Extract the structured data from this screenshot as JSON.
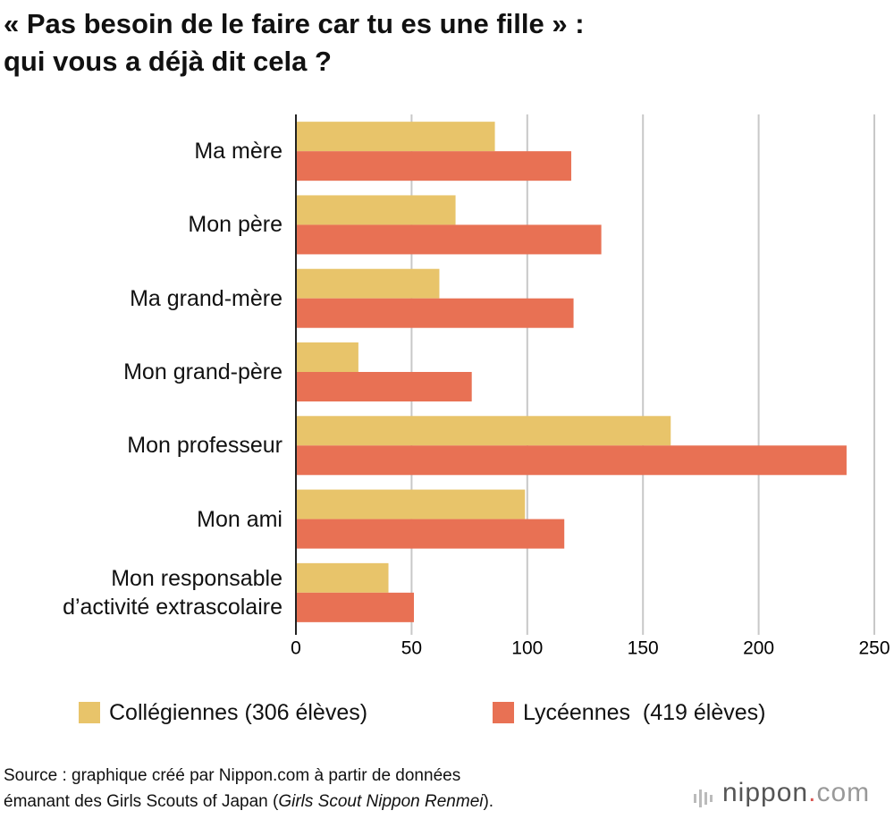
{
  "chart_data": {
    "type": "hbar",
    "title": "« Pas besoin de le faire car tu es une fille » :\nqui vous a déjà dit cela ?",
    "categories": [
      "Ma mère",
      "Mon père",
      "Ma grand-mère",
      "Mon grand-père",
      "Mon professeur",
      "Mon ami",
      "Mon responsable\nd’activité extrascolaire"
    ],
    "series": [
      {
        "name": "Collégiennes (306 élèves)",
        "color": "#e8c46a",
        "values": [
          86,
          69,
          62,
          27,
          162,
          99,
          40
        ]
      },
      {
        "name": "Lycéennes  (419 élèves)",
        "color": "#e87154",
        "values": [
          119,
          132,
          120,
          76,
          238,
          116,
          51
        ]
      }
    ],
    "xlim": [
      0,
      250
    ],
    "xticks": [
      0,
      50,
      100,
      150,
      200,
      250
    ],
    "grid": true,
    "source": [
      "Source : graphique créé par Nippon.com à partir de données\némanant des Girls Scouts of Japan (",
      "Girls Scout Nippon Renmei",
      ")."
    ],
    "logo": [
      "nippon",
      ".",
      "com"
    ]
  }
}
